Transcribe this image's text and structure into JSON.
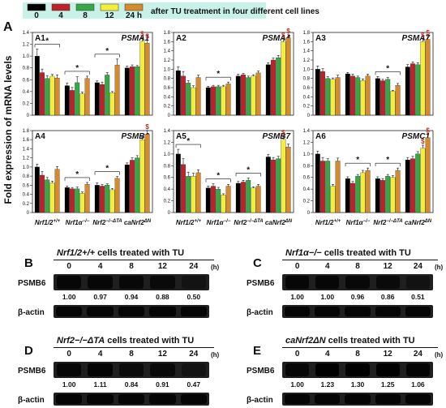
{
  "figure": {
    "panel_label": "A",
    "y_axis_label": "Fold expression of mRNA levels",
    "legend": {
      "items": [
        {
          "label": "0",
          "color": "#000000"
        },
        {
          "label": "4",
          "color": "#c0202a"
        },
        {
          "label": "8",
          "color": "#3aa64a"
        },
        {
          "label": "12",
          "color": "#f2ee3a"
        },
        {
          "label": "24 h",
          "color": "#d58a2e"
        }
      ],
      "caption": "after TU treatment   in four different cell lines"
    },
    "x_groups": [
      "Nrf1/2+/+",
      "Nrf1α−/−",
      "Nrf2−/−ΔTA",
      "caNrf2ΔN"
    ],
    "x_group_parts": [
      {
        "base": "Nrf1/2",
        "sup": "+/+"
      },
      {
        "base": "Nrf1α",
        "sup": "−/−"
      },
      {
        "base": "Nrf2",
        "sup": "−/−ΔTA"
      },
      {
        "base": "caNrf2",
        "sup": "ΔN"
      }
    ]
  },
  "chart_data": [
    {
      "type": "bar",
      "panel": "A1",
      "title": "PSMA1",
      "ylim": [
        0,
        1.4
      ],
      "yticks": [
        "0",
        "0.2",
        "0.4",
        "0.6",
        "0.8",
        "1.0",
        "1.2",
        "1.4"
      ],
      "categories": [
        "Nrf1/2+/+",
        "Nrf1α−/−",
        "Nrf2−/−ΔTA",
        "caNrf2ΔN"
      ],
      "series": [
        {
          "name": "0",
          "values": [
            1.0,
            0.5,
            0.55,
            0.8
          ]
        },
        {
          "name": "4",
          "values": [
            0.72,
            0.42,
            0.52,
            0.82
          ]
        },
        {
          "name": "8",
          "values": [
            0.62,
            0.55,
            0.68,
            0.82
          ]
        },
        {
          "name": "12",
          "values": [
            0.66,
            0.36,
            0.38,
            1.25
          ]
        },
        {
          "name": "24 h",
          "values": [
            0.63,
            0.62,
            0.85,
            1.22
          ]
        }
      ],
      "errors": [
        [
          0.12,
          0.04,
          0.03,
          0.03
        ],
        [
          0.06,
          0.05,
          0.04,
          0.03
        ],
        [
          0.05,
          0.1,
          0.04,
          0.02
        ],
        [
          0.03,
          0.03,
          0.02,
          0.06
        ],
        [
          0.05,
          0.04,
          0.1,
          0.05
        ]
      ],
      "brackets": [
        {
          "group": 0,
          "label": "*"
        },
        {
          "group": 1,
          "label": "*"
        },
        {
          "group": 2,
          "label": "*"
        }
      ],
      "marks": [
        {
          "group": 3,
          "series": 3,
          "label": "$"
        },
        {
          "group": 3,
          "series": 4,
          "label": "$"
        }
      ]
    },
    {
      "type": "bar",
      "panel": "A2",
      "title": "PSMA4",
      "ylim": [
        0,
        1.8
      ],
      "yticks": [
        "0",
        "0.2",
        "0.4",
        "0.6",
        "0.8",
        "1.0",
        "1.2",
        "1.4",
        "1.6",
        "1.8"
      ],
      "categories": [
        "Nrf1/2+/+",
        "Nrf1α−/−",
        "Nrf2−/−ΔTA",
        "caNrf2ΔN"
      ],
      "series": [
        {
          "name": "0",
          "values": [
            0.97,
            0.6,
            0.85,
            1.1
          ]
        },
        {
          "name": "4",
          "values": [
            0.85,
            0.62,
            0.88,
            1.2
          ]
        },
        {
          "name": "8",
          "values": [
            0.7,
            0.62,
            0.82,
            1.25
          ]
        },
        {
          "name": "12",
          "values": [
            0.6,
            0.62,
            0.85,
            1.6
          ]
        },
        {
          "name": "24 h",
          "values": [
            0.82,
            0.68,
            0.92,
            1.68
          ]
        }
      ],
      "errors": [
        [
          0.08,
          0.03,
          0.04,
          0.04
        ],
        [
          0.1,
          0.03,
          0.03,
          0.04
        ],
        [
          0.05,
          0.03,
          0.03,
          0.05
        ],
        [
          0.04,
          0.03,
          0.03,
          0.06
        ],
        [
          0.05,
          0.04,
          0.04,
          0.07
        ]
      ],
      "brackets": [
        {
          "group": 1,
          "label": "*"
        }
      ],
      "marks": [
        {
          "group": 3,
          "series": 3,
          "label": "$"
        },
        {
          "group": 3,
          "series": 4,
          "label": "$"
        }
      ]
    },
    {
      "type": "bar",
      "panel": "A3",
      "title": "PSMA7",
      "ylim": [
        0,
        1.8
      ],
      "yticks": [
        "0",
        "0.2",
        "0.4",
        "0.6",
        "0.8",
        "1.0",
        "1.2",
        "1.4",
        "1.6",
        "1.8"
      ],
      "categories": [
        "Nrf1/2+/+",
        "Nrf1α−/−",
        "Nrf2−/−ΔTA",
        "caNrf2ΔN"
      ],
      "series": [
        {
          "name": "0",
          "values": [
            1.0,
            0.9,
            0.8,
            1.05
          ]
        },
        {
          "name": "4",
          "values": [
            0.95,
            0.85,
            0.75,
            1.12
          ]
        },
        {
          "name": "8",
          "values": [
            0.8,
            0.82,
            0.78,
            1.1
          ]
        },
        {
          "name": "12",
          "values": [
            0.78,
            0.75,
            0.52,
            1.6
          ]
        },
        {
          "name": "24 h",
          "values": [
            0.82,
            0.85,
            0.65,
            1.65
          ]
        }
      ],
      "errors": [
        [
          0.07,
          0.03,
          0.04,
          0.05
        ],
        [
          0.06,
          0.04,
          0.03,
          0.04
        ],
        [
          0.04,
          0.03,
          0.04,
          0.04
        ],
        [
          0.03,
          0.04,
          0.02,
          0.06
        ],
        [
          0.05,
          0.04,
          0.04,
          0.06
        ]
      ],
      "brackets": [
        {
          "group": 2,
          "label": "*"
        }
      ],
      "marks": [
        {
          "group": 3,
          "series": 3,
          "label": "$"
        },
        {
          "group": 3,
          "series": 4,
          "label": "$"
        }
      ]
    },
    {
      "type": "bar",
      "panel": "A4",
      "title": "PSMB6",
      "ylim": [
        0,
        1.8
      ],
      "yticks": [
        "0",
        "0.2",
        "0.4",
        "0.6",
        "0.8",
        "1.0",
        "1.2",
        "1.4",
        "1.6",
        "1.8"
      ],
      "categories": [
        "Nrf1/2+/+",
        "Nrf1α−/−",
        "Nrf2−/−ΔTA",
        "caNrf2ΔN"
      ],
      "series": [
        {
          "name": "0",
          "values": [
            1.0,
            0.55,
            0.6,
            1.05
          ]
        },
        {
          "name": "4",
          "values": [
            0.82,
            0.52,
            0.58,
            1.15
          ]
        },
        {
          "name": "8",
          "values": [
            0.72,
            0.52,
            0.6,
            1.2
          ]
        },
        {
          "name": "12",
          "values": [
            0.65,
            0.42,
            0.5,
            1.6
          ]
        },
        {
          "name": "24 h",
          "values": [
            0.95,
            0.62,
            0.75,
            1.72
          ]
        }
      ],
      "errors": [
        [
          0.06,
          0.03,
          0.05,
          0.04
        ],
        [
          0.08,
          0.03,
          0.04,
          0.05
        ],
        [
          0.05,
          0.04,
          0.03,
          0.05
        ],
        [
          0.04,
          0.03,
          0.03,
          0.06
        ],
        [
          0.06,
          0.04,
          0.04,
          0.08
        ]
      ],
      "brackets": [
        {
          "group": 1,
          "label": "*"
        },
        {
          "group": 2,
          "label": "*"
        }
      ],
      "marks": [
        {
          "group": 3,
          "series": 4,
          "label": "$"
        }
      ]
    },
    {
      "type": "bar",
      "panel": "A5",
      "title": "PSMB7",
      "ylim": [
        0,
        1.4
      ],
      "yticks": [
        "0",
        "0.2",
        "0.4",
        "0.6",
        "0.8",
        "1.0",
        "1.2",
        "1.4"
      ],
      "categories": [
        "Nrf1/2+/+",
        "Nrf1α−/−",
        "Nrf2−/−ΔTA",
        "caNrf2ΔN"
      ],
      "series": [
        {
          "name": "0",
          "values": [
            1.0,
            0.42,
            0.5,
            0.95
          ]
        },
        {
          "name": "4",
          "values": [
            0.82,
            0.45,
            0.52,
            0.9
          ]
        },
        {
          "name": "8",
          "values": [
            0.62,
            0.4,
            0.55,
            0.92
          ]
        },
        {
          "name": "12",
          "values": [
            0.62,
            0.3,
            0.42,
            1.25
          ]
        },
        {
          "name": "24 h",
          "values": [
            0.68,
            0.45,
            0.45,
            1.12
          ]
        }
      ],
      "errors": [
        [
          0.08,
          0.03,
          0.03,
          0.04
        ],
        [
          0.1,
          0.04,
          0.03,
          0.04
        ],
        [
          0.07,
          0.03,
          0.04,
          0.04
        ],
        [
          0.05,
          0.02,
          0.02,
          0.05
        ],
        [
          0.05,
          0.03,
          0.03,
          0.05
        ]
      ],
      "brackets": [
        {
          "group": 0,
          "label": "*"
        },
        {
          "group": 1,
          "label": "*"
        },
        {
          "group": 2,
          "label": "*"
        }
      ],
      "marks": [
        {
          "group": 3,
          "series": 3,
          "label": "$"
        }
      ]
    },
    {
      "type": "bar",
      "panel": "A6",
      "title": "PSMC1",
      "ylim": [
        0,
        1.4
      ],
      "yticks": [
        "0",
        "0.2",
        "0.4",
        "0.6",
        "0.8",
        "1.0",
        "1.2",
        "1.4"
      ],
      "categories": [
        "Nrf1/2+/+",
        "Nrf1α−/−",
        "Nrf2−/−ΔTA",
        "caNrf2ΔN"
      ],
      "series": [
        {
          "name": "0",
          "values": [
            1.0,
            0.58,
            0.58,
            0.9
          ]
        },
        {
          "name": "4",
          "values": [
            0.88,
            0.5,
            0.55,
            0.92
          ]
        },
        {
          "name": "8",
          "values": [
            0.88,
            0.62,
            0.62,
            1.0
          ]
        },
        {
          "name": "12",
          "values": [
            0.45,
            0.68,
            0.6,
            1.1
          ]
        },
        {
          "name": "24 h",
          "values": [
            0.88,
            0.72,
            0.72,
            1.28
          ]
        }
      ],
      "errors": [
        [
          0.05,
          0.03,
          0.03,
          0.04
        ],
        [
          0.06,
          0.03,
          0.03,
          0.04
        ],
        [
          0.04,
          0.03,
          0.03,
          0.04
        ],
        [
          0.03,
          0.04,
          0.03,
          0.05
        ],
        [
          0.05,
          0.04,
          0.04,
          0.06
        ]
      ],
      "brackets": [
        {
          "group": 1,
          "label": "*"
        },
        {
          "group": 2,
          "label": "*"
        }
      ],
      "marks": [
        {
          "group": 3,
          "series": 3,
          "label": "$"
        },
        {
          "group": 3,
          "series": 4,
          "label": "$"
        }
      ]
    }
  ],
  "blots": [
    {
      "letter": "B",
      "title_italic": "Nrf1/2+/+",
      "title_rest": " cells treated with TU",
      "times": [
        "0",
        "4",
        "8",
        "12",
        "24"
      ],
      "time_unit": "(h)",
      "row1_label": "PSMB6",
      "row2_label": "β-actin",
      "values": [
        1.0,
        0.97,
        0.94,
        0.88,
        0.5
      ],
      "value_labels": [
        "1.00",
        "0.97",
        "0.94",
        "0.88",
        "0.50"
      ]
    },
    {
      "letter": "C",
      "title_italic": "Nrf1α−/−",
      "title_rest": " cells treated with TU",
      "times": [
        "0",
        "4",
        "8",
        "12",
        "24"
      ],
      "time_unit": "(h)",
      "row1_label": "PSMB6",
      "row2_label": "β-actin",
      "values": [
        1.0,
        1.0,
        0.96,
        0.86,
        0.51
      ],
      "value_labels": [
        "1.00",
        "1.00",
        "0.96",
        "0.86",
        "0.51"
      ]
    },
    {
      "letter": "D",
      "title_italic": "Nrf2−/−ΔTA",
      "title_rest": " cells treated with TU",
      "times": [
        "0",
        "4",
        "8",
        "12",
        "24"
      ],
      "time_unit": "(h)",
      "row1_label": "PSMB6",
      "row2_label": "β-actin",
      "values": [
        1.0,
        1.11,
        0.84,
        0.91,
        0.47
      ],
      "value_labels": [
        "1.00",
        "1.11",
        "0.84",
        "0.91",
        "0.47"
      ]
    },
    {
      "letter": "E",
      "title_italic": "caNrf2ΔN",
      "title_rest": " cells treated with TU",
      "times": [
        "0",
        "4",
        "8",
        "12",
        "24"
      ],
      "time_unit": "(h)",
      "row1_label": "PSMB6",
      "row2_label": "β-actin",
      "values": [
        1.0,
        1.23,
        1.3,
        1.25,
        1.06
      ],
      "value_labels": [
        "1.00",
        "1.23",
        "1.30",
        "1.25",
        "1.06"
      ]
    }
  ]
}
